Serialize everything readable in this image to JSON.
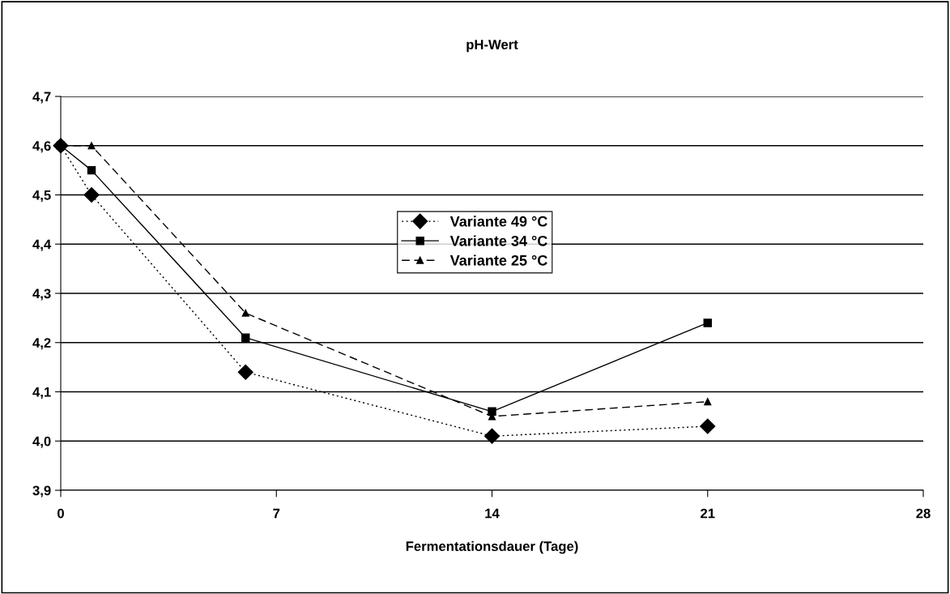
{
  "chart_data": {
    "type": "line",
    "title": "pH-Wert",
    "xlabel": "Fermentationsdauer (Tage)",
    "x": [
      0,
      1,
      6,
      14,
      21
    ],
    "series": [
      {
        "name": "Variante 49 °C",
        "color": "#000000",
        "values": [
          4.6,
          4.5,
          4.14,
          4.01,
          4.03
        ],
        "marker": "diamond",
        "line_style": "dotted"
      },
      {
        "name": "Variante 34 °C",
        "color": "#000000",
        "values": [
          4.6,
          4.55,
          4.21,
          4.06,
          4.24
        ],
        "marker": "square",
        "line_style": "solid"
      },
      {
        "name": "Variante 25 °C",
        "color": "#000000",
        "values": [
          4.6,
          4.6,
          4.26,
          4.05,
          4.08
        ],
        "marker": "triangle",
        "line_style": "dashed"
      }
    ],
    "xlim": [
      0,
      28
    ],
    "xticks": [
      0,
      7,
      14,
      21,
      28
    ],
    "ylim": [
      3.9,
      4.7
    ],
    "yticks": [
      {
        "value": 3.9,
        "label": "3,9"
      },
      {
        "value": 4.0,
        "label": "4,0"
      },
      {
        "value": 4.1,
        "label": "4,1"
      },
      {
        "value": 4.2,
        "label": "4,2"
      },
      {
        "value": 4.3,
        "label": "4,3"
      },
      {
        "value": 4.4,
        "label": "4,4"
      },
      {
        "value": 4.5,
        "label": "4,5"
      },
      {
        "value": 4.6,
        "label": "4,6"
      },
      {
        "value": 4.7,
        "label": "4,7"
      }
    ],
    "grid": "y",
    "legend": "center"
  }
}
